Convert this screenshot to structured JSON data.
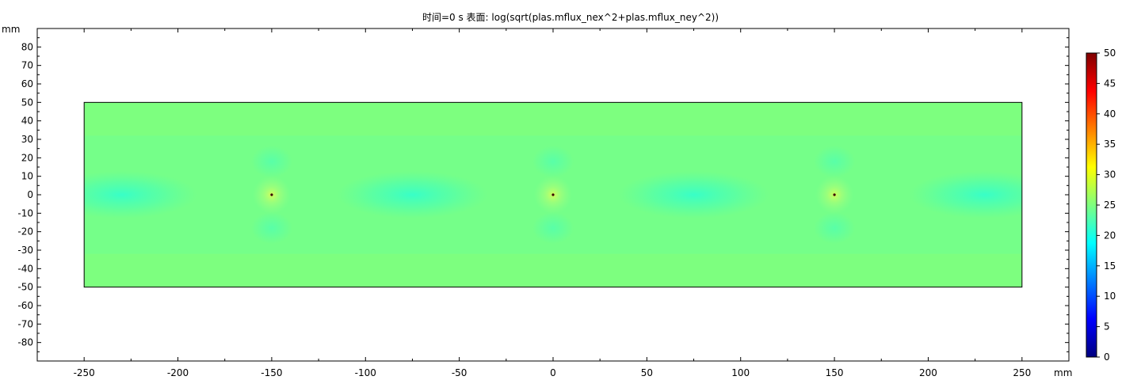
{
  "chart_data": {
    "type": "heatmap",
    "title": "时间=0 s   表面: log(sqrt(plas.mflux_nex^2+plas.mflux_ney^2))",
    "xlabel": "mm",
    "ylabel": "mm",
    "xlim": [
      -275,
      275
    ],
    "ylim": [
      -90,
      90
    ],
    "x_ticks": [
      "-250",
      "-200",
      "-150",
      "-100",
      "-50",
      "0",
      "50",
      "100",
      "150",
      "200",
      "250"
    ],
    "y_ticks": [
      "80",
      "70",
      "60",
      "50",
      "40",
      "30",
      "20",
      "10",
      "0",
      "-10",
      "-20",
      "-30",
      "-40",
      "-50",
      "-60",
      "-70",
      "-80"
    ],
    "domain": {
      "x": [
        -250,
        250
      ],
      "y": [
        -50,
        50
      ]
    },
    "grid": false,
    "colorscale": "rainbow (jet)",
    "colorbar": {
      "min": 0,
      "max": 50,
      "ticks": [
        "0",
        "5",
        "10",
        "15",
        "20",
        "25",
        "30",
        "35",
        "40",
        "45",
        "50"
      ],
      "colors": [
        "#00007f",
        "#0000ff",
        "#007fff",
        "#00ffff",
        "#7fff7f",
        "#ffff00",
        "#ff7f00",
        "#ff0000",
        "#7f0000"
      ]
    },
    "background_value": 24.5,
    "point_sources": [
      {
        "x": -150,
        "y": 0
      },
      {
        "x": 0,
        "y": 0
      },
      {
        "x": 150,
        "y": 0
      }
    ],
    "cyan_band_centers_x": [
      -230,
      -75,
      75,
      230
    ]
  }
}
